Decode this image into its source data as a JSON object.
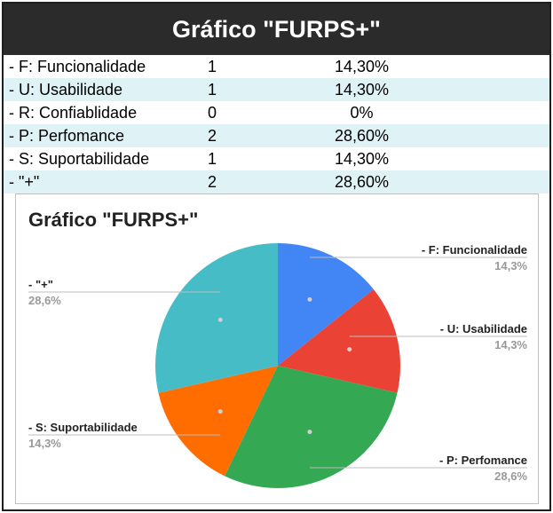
{
  "header": {
    "title": "Gráfico \"FURPS+\""
  },
  "table": {
    "rows": [
      {
        "label": "- F: Funcionalidade",
        "count": "1",
        "percent": "14,30%"
      },
      {
        "label": "- U: Usabilidade",
        "count": "1",
        "percent": "14,30%"
      },
      {
        "label": "- R: Confiablidade",
        "count": "0",
        "percent": "0%"
      },
      {
        "label": "- P: Perfomance",
        "count": "2",
        "percent": "28,60%"
      },
      {
        "label": "- S: Suportabilidade",
        "count": "1",
        "percent": "14,30%"
      },
      {
        "label": "- \"+\"",
        "count": "2",
        "percent": "28,60%"
      }
    ]
  },
  "chart_data": {
    "type": "pie",
    "title": "Gráfico \"FURPS+\"",
    "slices": [
      {
        "label": "- F: Funcionalidade",
        "value": 1,
        "percent_label": "14,3%",
        "color": "#4285f4"
      },
      {
        "label": "- U: Usabilidade",
        "value": 1,
        "percent_label": "14,3%",
        "color": "#ea4335"
      },
      {
        "label": "- R: Confiablidade",
        "value": 0,
        "percent_label": "0%",
        "color": "#fbbc04"
      },
      {
        "label": "- P: Perfomance",
        "value": 2,
        "percent_label": "28,6%",
        "color": "#34a853"
      },
      {
        "label": "- S: Suportabilidade",
        "value": 1,
        "percent_label": "14,3%",
        "color": "#ff6d01"
      },
      {
        "label": "- \"+\"",
        "value": 2,
        "percent_label": "28,6%",
        "color": "#46bdc6"
      }
    ]
  }
}
